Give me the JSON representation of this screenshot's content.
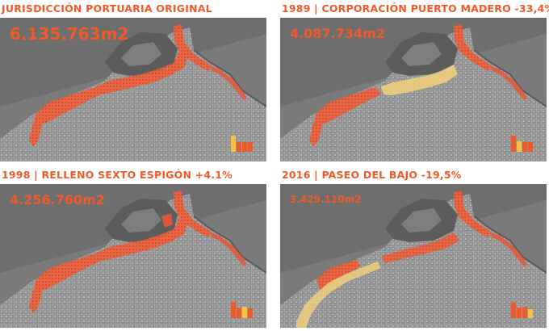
{
  "colors": {
    "accent": "#f05a28",
    "port_area": "#f0603a",
    "removed_area": "#f2d27a",
    "water": "#7d7d7d",
    "city": "#9a9a9a"
  },
  "panels": [
    {
      "title": "JURISDICCIÓN PORTUARIA ORIGINAL",
      "area": "6.135.763m2",
      "highlight": "none",
      "legend_levels": [
        1.0,
        0.0,
        0.0,
        0.0
      ]
    },
    {
      "title": "1989 | CORPORACIÓN PUERTO MADERO  -33,4%",
      "area": "4.087.734m2",
      "highlight": "puerto-madero",
      "legend_levels": [
        1.0,
        0.67,
        0.0,
        0.0
      ]
    },
    {
      "title": "1998 | RELLENO SEXTO ESPIGÓN +4.1%",
      "area": "4.256.760m2",
      "highlight": "none",
      "legend_levels": [
        1.0,
        0.67,
        0.69,
        0.0
      ]
    },
    {
      "title": "2016 | PASEO DEL BAJO  -19,5%",
      "area": "3.429.110m2",
      "highlight": "paseo-del-bajo",
      "legend_levels": [
        1.0,
        0.67,
        0.69,
        0.56
      ]
    }
  ]
}
